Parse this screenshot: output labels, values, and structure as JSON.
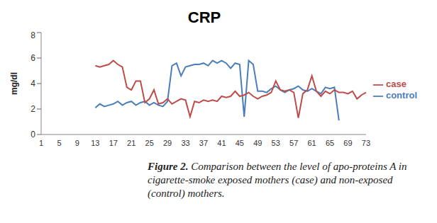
{
  "chart_data": {
    "type": "line",
    "title": "CRP",
    "y_label": "mg/dl",
    "caption": "Figure 2. Comparison between the level of apo-proteins A in cigarette-smoke exposed mothers (case) and non-exposed (control) mothers.",
    "categories": [
      "1",
      null,
      null,
      null,
      "5",
      null,
      null,
      null,
      "9",
      null,
      null,
      null,
      "13",
      null,
      null,
      null,
      "17",
      null,
      null,
      null,
      "21",
      null,
      null,
      null,
      "25",
      null,
      null,
      null,
      "29",
      null,
      null,
      null,
      "33",
      null,
      null,
      null,
      "37",
      null,
      null,
      null,
      "41",
      null,
      null,
      null,
      "45",
      null,
      null,
      null,
      "49",
      null,
      null,
      null,
      "53",
      null,
      null,
      null,
      "57",
      null,
      null,
      null,
      "61",
      null,
      null,
      null,
      "65",
      null,
      null,
      null,
      "69",
      null,
      null,
      null,
      "73"
    ],
    "series": [
      {
        "name": "control",
        "color": "#4a7ebb",
        "values": [
          null,
          null,
          null,
          null,
          null,
          null,
          null,
          null,
          null,
          null,
          null,
          null,
          2.1,
          2.4,
          2.2,
          2.3,
          2.4,
          2.6,
          2.3,
          2.5,
          2.6,
          2.3,
          2.5,
          2.6,
          2.3,
          2.5,
          2.3,
          2.2,
          2.6,
          5.4,
          5.6,
          4.6,
          5.3,
          5.4,
          5.5,
          5.5,
          5.6,
          5.4,
          5.8,
          5.6,
          5.8,
          5.6,
          5.2,
          5.6,
          5.5,
          1.4,
          5.8,
          5.5,
          3.4,
          3.4,
          3.3,
          3.6,
          3.8,
          3.5,
          3.3,
          3.5,
          3.6,
          3.8,
          3.5,
          3.4,
          3.6,
          3.4,
          3.2,
          3.7,
          3.6,
          3.7,
          1.1,
          null,
          null,
          null,
          null,
          null,
          null
        ]
      },
      {
        "name": "case",
        "color": "#be4b48",
        "values": [
          null,
          null,
          null,
          null,
          null,
          null,
          null,
          null,
          null,
          null,
          null,
          null,
          5.4,
          5.3,
          5.4,
          5.5,
          5.8,
          5.5,
          5.3,
          3.7,
          3.5,
          4.2,
          4.2,
          2.5,
          2.8,
          3.5,
          2.4,
          2.5,
          2.8,
          2.4,
          2.6,
          2.8,
          2.7,
          1.4,
          2.6,
          2.5,
          2.7,
          2.6,
          2.7,
          2.6,
          3.0,
          2.9,
          3.0,
          3.4,
          3.0,
          3.1,
          3.3,
          3.0,
          2.8,
          3.0,
          3.1,
          3.3,
          4.2,
          3.5,
          3.4,
          3.5,
          3.3,
          1.3,
          3.2,
          3.5,
          4.6,
          3.4,
          3.0,
          3.4,
          3.2,
          3.5,
          3.3,
          3.3,
          3.2,
          3.4,
          2.8,
          3.1,
          3.3
        ]
      }
    ],
    "ylim": [
      0,
      8
    ],
    "yticks": [
      0,
      2,
      4,
      6,
      8
    ],
    "grid": false,
    "legend": "right"
  }
}
